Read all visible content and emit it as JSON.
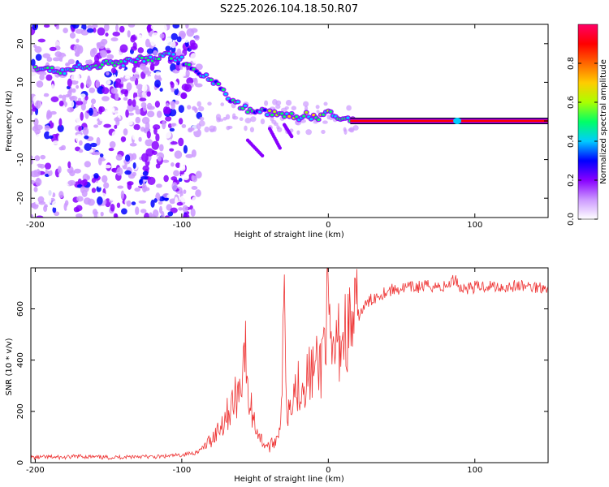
{
  "title": "S225.2026.104.18.50.R07",
  "chart_data": [
    {
      "type": "heatmap",
      "xlabel": "Height of straight line (km)",
      "ylabel": "Frequency (Hz)",
      "xlim": [
        -203,
        150
      ],
      "ylim": [
        -25,
        25
      ],
      "xticks": [
        -200,
        -100,
        0,
        100
      ],
      "yticks": [
        -20,
        -10,
        0,
        10,
        20
      ],
      "colorbar": {
        "label": "Normalized spectral amplitude",
        "range": [
          0,
          1
        ],
        "ticks": [
          "0.0",
          "0.2",
          "0.4",
          "0.6",
          "0.8"
        ],
        "colors": [
          "#ffffff",
          "#cc99ff",
          "#8800ff",
          "#0000ff",
          "#00ccff",
          "#00ff66",
          "#aaff00",
          "#ffcc00",
          "#ff6600",
          "#ff0000",
          "#ff0066"
        ]
      },
      "track": {
        "x": [
          -200,
          -190,
          -180,
          -170,
          -160,
          -150,
          -140,
          -130,
          -120,
          -110,
          -100,
          -95,
          -90,
          -85,
          -80,
          -75,
          -70,
          -65,
          -60,
          -55,
          -50,
          -45,
          -40,
          -35,
          -30,
          -25,
          -20,
          -15,
          -10,
          -5,
          0,
          5,
          10,
          15,
          20,
          150
        ],
        "freq": [
          14,
          13,
          13,
          14,
          14,
          15,
          15,
          16,
          16,
          17,
          16,
          14,
          13,
          12,
          11,
          9,
          7,
          5,
          4,
          3,
          2.5,
          2.5,
          2,
          1.5,
          1.5,
          1.5,
          1,
          1.5,
          1,
          1,
          2,
          1,
          0.5,
          0.3,
          0,
          0
        ]
      }
    },
    {
      "type": "line",
      "xlabel": "Height of straight line (km)",
      "ylabel": "SNR (10 * v/v)",
      "xlim": [
        -203,
        150
      ],
      "ylim": [
        0,
        760
      ],
      "xticks": [
        -200,
        -100,
        0,
        100
      ],
      "yticks": [
        0,
        200,
        400,
        600
      ],
      "color": "#ee3333",
      "x": [
        -203,
        -190,
        -180,
        -170,
        -160,
        -150,
        -140,
        -130,
        -120,
        -110,
        -100,
        -95,
        -90,
        -85,
        -80,
        -75,
        -70,
        -65,
        -60,
        -57,
        -55,
        -52,
        -50,
        -45,
        -40,
        -35,
        -32,
        -30,
        -28,
        -25,
        -20,
        -15,
        -10,
        -5,
        -3,
        0,
        2,
        5,
        10,
        15,
        20,
        25,
        30,
        40,
        50,
        60,
        70,
        80,
        87,
        90,
        100,
        110,
        120,
        130,
        140,
        150
      ],
      "y": [
        20,
        22,
        20,
        25,
        22,
        20,
        22,
        25,
        22,
        25,
        30,
        35,
        40,
        60,
        90,
        130,
        180,
        230,
        300,
        480,
        250,
        200,
        150,
        80,
        60,
        100,
        200,
        650,
        180,
        280,
        300,
        330,
        360,
        380,
        500,
        600,
        380,
        450,
        500,
        530,
        570,
        610,
        640,
        670,
        680,
        685,
        690,
        685,
        720,
        680,
        685,
        690,
        685,
        690,
        685,
        688
      ]
    }
  ]
}
